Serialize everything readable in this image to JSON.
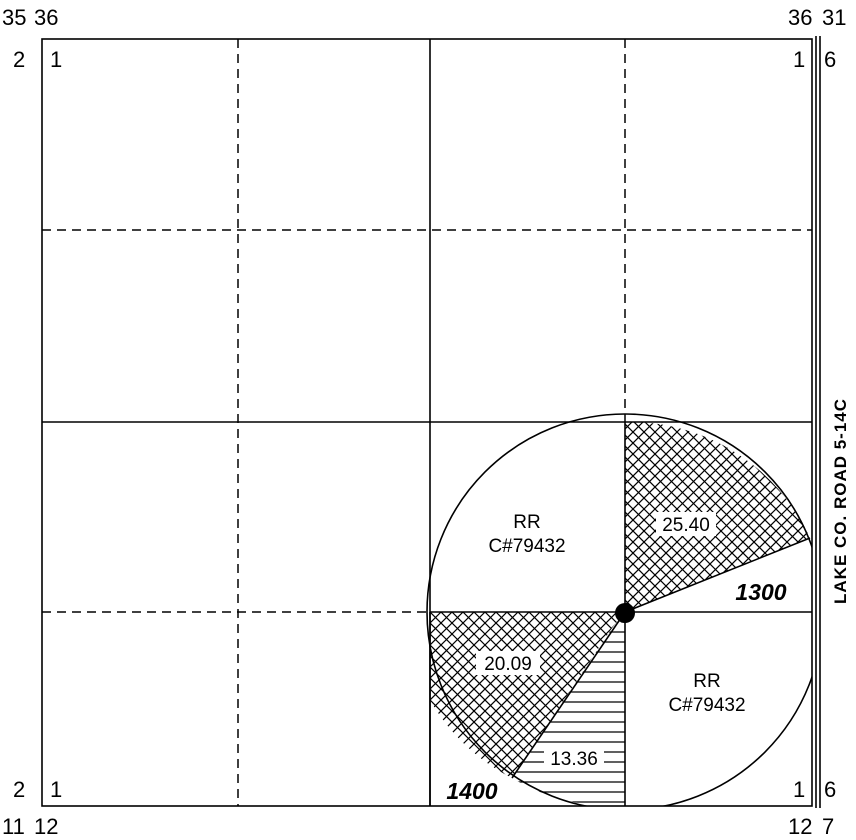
{
  "corner_labels": {
    "top_left_outer_a": "35",
    "top_left_outer_b": "36",
    "top_right_outer_a": "36",
    "top_right_outer_b": "31",
    "left_top": "2",
    "inner_top_left": "1",
    "inner_top_right": "1",
    "right_top": "6",
    "left_bottom": "2",
    "inner_bottom_left": "1",
    "inner_bottom_right": "1",
    "right_bottom": "6",
    "bottom_left_outer_a": "11",
    "bottom_left_outer_b": "12",
    "bottom_right_outer_a": "12",
    "bottom_right_outer_b": "7"
  },
  "road_label": "LAKE CO. ROAD 5-14C",
  "easements": [
    {
      "line1": "RR",
      "line2": "C#79432"
    },
    {
      "line1": "RR",
      "line2": "C#79432"
    }
  ],
  "areas": {
    "ne_crosshatch": "25.40",
    "sw_crosshatch": "20.09",
    "s_horizontal": "13.36"
  },
  "parcels": {
    "east": "1300",
    "west": "1400"
  }
}
